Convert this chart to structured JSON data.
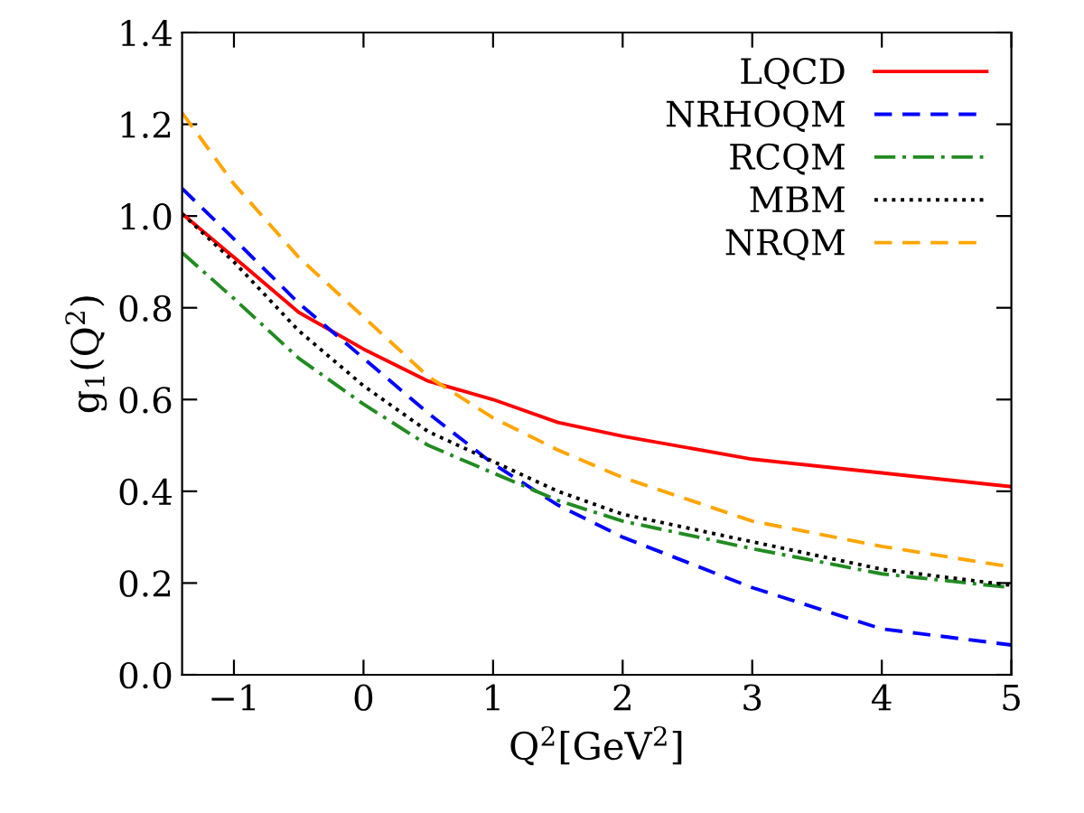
{
  "chart_data": {
    "type": "line",
    "xlabel": "Q$^{2}$[GeV$^{2}$]",
    "ylabel": "g$_{1}$(Q$^{2}$)",
    "x": [
      -1.4,
      -1,
      -0.5,
      0,
      0.5,
      1,
      1.5,
      2,
      3,
      4,
      5
    ],
    "series": [
      {
        "name": "LQCD",
        "color": "#ff0000",
        "line_style": "solid",
        "values": [
          1.005,
          0.91,
          0.79,
          0.71,
          0.64,
          0.6,
          0.55,
          0.52,
          0.47,
          0.44,
          0.41
        ]
      },
      {
        "name": "NRHOQM",
        "color": "#0000ff",
        "line_style": "dashed",
        "values": [
          1.06,
          0.95,
          0.81,
          0.69,
          0.57,
          0.46,
          0.37,
          0.3,
          0.19,
          0.1,
          0.065
        ]
      },
      {
        "name": "RCQM",
        "color": "#228b22",
        "line_style": "dashdot",
        "values": [
          0.92,
          0.82,
          0.69,
          0.59,
          0.5,
          0.44,
          0.38,
          0.335,
          0.275,
          0.22,
          0.19
        ]
      },
      {
        "name": "MBM",
        "color": "#000000",
        "line_style": "dotted",
        "values": [
          1.005,
          0.9,
          0.75,
          0.63,
          0.53,
          0.465,
          0.4,
          0.35,
          0.29,
          0.23,
          0.195
        ]
      },
      {
        "name": "NRQM",
        "color": "#ffa500",
        "line_style": "dashed",
        "values": [
          1.225,
          1.07,
          0.91,
          0.78,
          0.65,
          0.56,
          0.49,
          0.43,
          0.335,
          0.28,
          0.235
        ]
      }
    ],
    "xlim": [
      -1.4,
      5
    ],
    "xticks": [
      {
        "value": -1,
        "label": "−1"
      },
      0,
      1,
      2,
      3,
      4,
      5
    ],
    "ylim": [
      0,
      1.4
    ],
    "yticks": [
      {
        "value": 0,
        "label": "0.0"
      },
      0.2,
      0.4,
      0.6,
      0.8,
      {
        "value": 1.0,
        "label": "1.0"
      },
      1.2,
      1.4
    ],
    "grid": false,
    "legend": "top right",
    "marker": "none"
  }
}
